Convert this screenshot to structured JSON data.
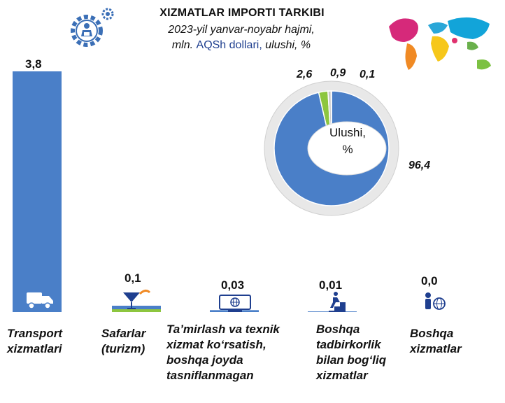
{
  "title": "XIZMATLAR IMPORTI TARKIBI",
  "subtitle": {
    "line1": "2023-yil yanvar-noyabr hajmi,",
    "line2_a": "mln.",
    "line2_b": "AQSh dollari,",
    "line2_c": "ulushi, %"
  },
  "colors": {
    "bar": "#4a7fc8",
    "accent": "#8dc63f",
    "pie_main": "#4a7fc8",
    "pie_ring": "#e8e8e8"
  },
  "icons": [
    "gear-person-icon",
    "world-map-icon",
    "truck-icon",
    "cocktail-icon",
    "monitor-globe-icon",
    "runner-stairs-icon",
    "person-globe-icon"
  ],
  "chart_data": [
    {
      "type": "bar",
      "categories": [
        [
          "Transport",
          "xizmatlari"
        ],
        [
          "Safarlar",
          "(turizm)"
        ],
        [
          "Ta’mirlash va texnik",
          "xizmat ko‘rsatish,",
          "boshqa joyda",
          "tasniflanmagan"
        ],
        [
          "Boshqa",
          "tadbirkorlik",
          "bilan bog‘liq",
          "xizmatlar"
        ],
        [
          "Boshqa",
          "xizmatlar"
        ]
      ],
      "values": [
        3.8,
        0.1,
        0.03,
        0.01,
        0.0
      ],
      "value_labels": [
        "3,8",
        "0,1",
        "0,03",
        "0,01",
        "0,0"
      ],
      "ylim": [
        0,
        3.8
      ]
    },
    {
      "type": "pie",
      "center_label": [
        "Ulushi,",
        "%"
      ],
      "values": [
        96.4,
        2.6,
        0.9,
        0.1
      ],
      "value_labels": [
        "96,4",
        "2,6",
        "0,9",
        "0,1"
      ],
      "colors": [
        "#4a7fc8",
        "#8dc63f",
        "#c8c8c8",
        "#4a7fc8"
      ]
    }
  ]
}
